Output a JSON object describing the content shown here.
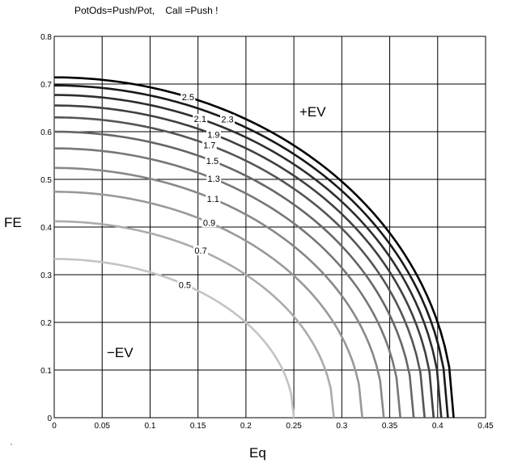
{
  "chart_data": {
    "type": "line",
    "title": "PotOds=Push/Pot,    Call =Push !",
    "xlabel": "Eq",
    "ylabel": "FE",
    "xlim": [
      0,
      0.45
    ],
    "ylim": [
      0,
      0.8
    ],
    "x_ticks": [
      "0",
      "0.05",
      "0.1",
      "0.15",
      "0.2",
      "0.25",
      "0.3",
      "0.35",
      "0.4",
      "0.45"
    ],
    "y_ticks": [
      "0",
      "0.1",
      "0.2",
      "0.3",
      "0.4",
      "0.5",
      "0.6",
      "0.7",
      "0.8"
    ],
    "grid": true,
    "region_labels": [
      "+EV",
      "−EV"
    ],
    "series": [
      {
        "name": "0.5",
        "color": "#c4c4c4",
        "y0": 0.333,
        "x0": 0.25
      },
      {
        "name": "0.7",
        "color": "#ababab",
        "y0": 0.412,
        "x0": 0.2917
      },
      {
        "name": "0.9",
        "color": "#999999",
        "y0": 0.474,
        "x0": 0.3214
      },
      {
        "name": "1.1",
        "color": "#888888",
        "y0": 0.524,
        "x0": 0.3438
      },
      {
        "name": "1.3",
        "color": "#777777",
        "y0": 0.565,
        "x0": 0.3611
      },
      {
        "name": "1.5",
        "color": "#666666",
        "y0": 0.6,
        "x0": 0.375
      },
      {
        "name": "1.7",
        "color": "#555555",
        "y0": 0.63,
        "x0": 0.3864
      },
      {
        "name": "1.9",
        "color": "#404040",
        "y0": 0.655,
        "x0": 0.3958
      },
      {
        "name": "2.1",
        "color": "#2e2e2e",
        "y0": 0.677,
        "x0": 0.4038
      },
      {
        "name": "2.3",
        "color": "#1a1a1a",
        "y0": 0.697,
        "x0": 0.4107
      },
      {
        "name": "2.5",
        "color": "#000000",
        "y0": 0.714,
        "x0": 0.4167
      }
    ]
  }
}
